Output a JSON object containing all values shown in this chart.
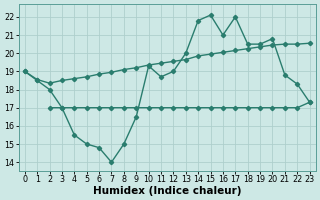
{
  "x_main": [
    0,
    1,
    2,
    3,
    4,
    5,
    6,
    7,
    8,
    9,
    10,
    11,
    12,
    13,
    14,
    15,
    16,
    17,
    18,
    19,
    20,
    21,
    22,
    23
  ],
  "y_main": [
    19.0,
    18.5,
    18.0,
    17.0,
    15.5,
    15.0,
    14.8,
    14.0,
    15.0,
    16.5,
    19.3,
    18.7,
    19.0,
    20.0,
    21.8,
    22.1,
    21.0,
    22.0,
    20.5,
    20.5,
    20.8,
    18.8,
    18.3,
    17.3
  ],
  "x_flat": [
    2,
    3,
    4,
    5,
    6,
    7,
    8,
    9,
    10,
    11,
    12,
    13,
    14,
    15,
    16,
    17,
    18,
    19,
    20,
    21,
    22,
    23
  ],
  "y_flat": [
    17.0,
    17.0,
    17.0,
    17.0,
    17.0,
    17.0,
    17.0,
    17.0,
    17.0,
    17.0,
    17.0,
    17.0,
    17.0,
    17.0,
    17.0,
    17.0,
    17.0,
    17.0,
    17.0,
    17.0,
    17.0,
    17.3
  ],
  "x_trend": [
    0,
    1,
    2,
    3,
    4,
    5,
    6,
    7,
    8,
    9,
    10,
    11,
    12,
    13,
    14,
    15,
    16,
    17,
    18,
    19,
    20,
    21,
    22,
    23
  ],
  "y_trend": [
    19.0,
    18.55,
    18.35,
    18.5,
    18.6,
    18.7,
    18.85,
    18.95,
    19.1,
    19.2,
    19.35,
    19.45,
    19.55,
    19.65,
    19.85,
    19.95,
    20.05,
    20.15,
    20.25,
    20.35,
    20.45,
    20.5,
    20.5,
    20.55
  ],
  "line_color": "#2a7d6e",
  "bg_color": "#cde8e5",
  "grid_color": "#aecfcc",
  "xlabel": "Humidex (Indice chaleur)",
  "ylim": [
    13.5,
    22.7
  ],
  "xlim": [
    -0.5,
    23.5
  ],
  "yticks": [
    14,
    15,
    16,
    17,
    18,
    19,
    20,
    21,
    22
  ],
  "xticks": [
    0,
    1,
    2,
    3,
    4,
    5,
    6,
    7,
    8,
    9,
    10,
    11,
    12,
    13,
    14,
    15,
    16,
    17,
    18,
    19,
    20,
    21,
    22,
    23
  ],
  "marker": "D",
  "markersize": 2.2,
  "linewidth": 1.0,
  "tick_fontsize": 5.8,
  "xlabel_fontsize": 7.5
}
